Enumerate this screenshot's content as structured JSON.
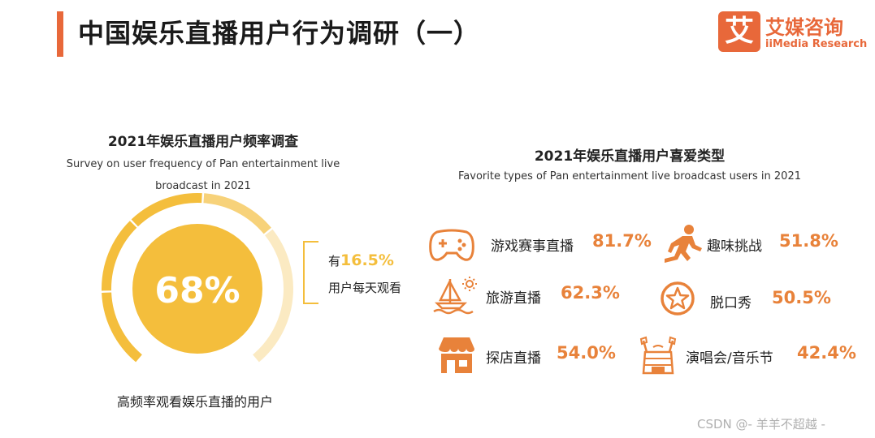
{
  "header": {
    "title": "中国娱乐直播用户行为调研（一）",
    "accent_color": "#e8683a"
  },
  "logo": {
    "cn": "艾媒咨询",
    "en": "iiMedia Research",
    "box_char": "艾",
    "color": "#e8683a"
  },
  "frequency": {
    "title": "2021年娱乐直播用户频率调查",
    "subtitle_line1": "Survey on user frequency of Pan entertainment live",
    "subtitle_line2": "broadcast in 2021",
    "center_value": "68%",
    "callout_prefix": "有",
    "callout_pct": "16.5%",
    "callout_line2": "用户每天观看",
    "bottom_label": "高频率观看娱乐直播的用户",
    "colors": {
      "main": "#f4be3c",
      "light": "#fbeac2",
      "mid": "#f7d27a"
    }
  },
  "favorites": {
    "title": "2021年娱乐直播用户喜爱类型",
    "subtitle": "Favorite types of Pan entertainment live broadcast users in 2021",
    "accent": "#e8823a"
  },
  "chart_data": [
    {
      "type": "pie",
      "title": "2021年娱乐直播用户频率调查",
      "subtitle": "Survey on user frequency of Pan entertainment live broadcast in 2021",
      "categories": [
        "高频率观看娱乐直播的用户",
        "用户每天观看"
      ],
      "values": [
        68,
        16.5
      ],
      "unit": "%"
    },
    {
      "type": "table",
      "title": "2021年娱乐直播用户喜爱类型",
      "subtitle": "Favorite types of Pan entertainment live broadcast users in 2021",
      "categories": [
        "游戏赛事直播",
        "趣味挑战",
        "旅游直播",
        "脱口秀",
        "探店直播",
        "演唱会/音乐节"
      ],
      "values": [
        81.7,
        51.8,
        62.3,
        50.5,
        54.0,
        42.4
      ],
      "labels": [
        "81.7%",
        "51.8%",
        "62.3%",
        "50.5%",
        "54.0%",
        "42.4%"
      ],
      "icons": [
        "gamepad-icon",
        "running-figure-icon",
        "sailboat-icon",
        "star-badge-icon",
        "storefront-icon",
        "concert-stage-icon"
      ],
      "unit": "%"
    }
  ],
  "watermark": "CSDN @-  羊羊不超越 -"
}
